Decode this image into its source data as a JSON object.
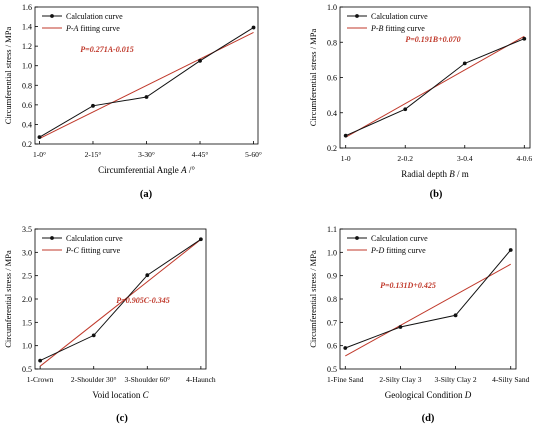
{
  "colors": {
    "calc": "#111111",
    "fit": "#c0392b",
    "axis": "#000000",
    "equation": "#c0392b"
  },
  "chart_data": [
    {
      "type": "line",
      "panel_label": "(a)",
      "xlabel_main": "Circumferential Angle ",
      "xlabel_italic": "A",
      "xlabel_unit": " /°",
      "ylabel": "Circumferential stress / MPa",
      "categories": [
        "1-0°",
        "2-15°",
        "3-30°",
        "4-45°",
        "5-60°"
      ],
      "ylim": [
        0.2,
        1.6
      ],
      "yticks": [
        "0.2",
        "0.4",
        "0.6",
        "0.8",
        "1.0",
        "1.2",
        "1.4",
        "1.6"
      ],
      "ytick_values": [
        0.2,
        0.4,
        0.6,
        0.8,
        1.0,
        1.2,
        1.4,
        1.6
      ],
      "series": [
        {
          "name": "Calculation curve",
          "values": [
            0.27,
            0.59,
            0.68,
            1.05,
            1.39
          ]
        }
      ],
      "fit": {
        "legend_italic": "P-A",
        "legend_rest": " fitting curve",
        "equation": "P=0.271A-0.015",
        "slope": 0.271,
        "intercept": -0.015
      }
    },
    {
      "type": "line",
      "panel_label": "(b)",
      "xlabel_main": "Radial depth ",
      "xlabel_italic": "B",
      "xlabel_unit": " / m",
      "ylabel": "Circumferential stress / MPa",
      "categories": [
        "1-0",
        "2-0.2",
        "3-0.4",
        "4-0.6"
      ],
      "ylim": [
        0.2,
        1.0
      ],
      "yticks": [
        "0.2",
        "0.4",
        "0.6",
        "0.8",
        "1.0"
      ],
      "ytick_values": [
        0.2,
        0.4,
        0.6,
        0.8,
        1.0
      ],
      "series": [
        {
          "name": "Calculation curve",
          "values": [
            0.27,
            0.42,
            0.68,
            0.82
          ]
        }
      ],
      "fit": {
        "legend_italic": "P-B",
        "legend_rest": " fitting curve",
        "equation": "P=0.191B+0.070",
        "slope": 0.191,
        "intercept": 0.07
      }
    },
    {
      "type": "line",
      "panel_label": "(c)",
      "xlabel_main": "Void location ",
      "xlabel_italic": "C",
      "xlabel_unit": "",
      "ylabel": "Circumferential stress / MPa",
      "categories": [
        "1-Crown",
        "2-Shoulder 30°",
        "3-Shoulder 60°",
        "4-Haunch"
      ],
      "ylim": [
        0.5,
        3.5
      ],
      "yticks": [
        "0.5",
        "1.0",
        "1.5",
        "2.0",
        "2.5",
        "3.0",
        "3.5"
      ],
      "ytick_values": [
        0.5,
        1.0,
        1.5,
        2.0,
        2.5,
        3.0,
        3.5
      ],
      "series": [
        {
          "name": "Calculation curve",
          "values": [
            0.68,
            1.22,
            2.51,
            3.28
          ]
        }
      ],
      "fit": {
        "legend_italic": "P-C",
        "legend_rest": " fitting curve",
        "equation": "P=0.905C-0.345",
        "slope": 0.905,
        "intercept": -0.345
      }
    },
    {
      "type": "line",
      "panel_label": "(d)",
      "xlabel_main": "Geological Condition ",
      "xlabel_italic": "D",
      "xlabel_unit": "",
      "ylabel": "Circumferential stress / MPa",
      "categories": [
        "1-Fine Sand",
        "2-Silty Clay 3",
        "3-Silty Clay 2",
        "4-Silty Sand"
      ],
      "ylim": [
        0.5,
        1.1
      ],
      "yticks": [
        "0.5",
        "0.6",
        "0.7",
        "0.8",
        "0.9",
        "1.0",
        "1.1"
      ],
      "ytick_values": [
        0.5,
        0.6,
        0.7,
        0.8,
        0.9,
        1.0,
        1.1
      ],
      "series": [
        {
          "name": "Calculation curve",
          "values": [
            0.59,
            0.68,
            0.73,
            1.01
          ]
        }
      ],
      "fit": {
        "legend_italic": "P-D",
        "legend_rest": " fitting curve",
        "equation": "P=0.131D+0.425",
        "slope": 0.131,
        "intercept": 0.425
      }
    }
  ]
}
